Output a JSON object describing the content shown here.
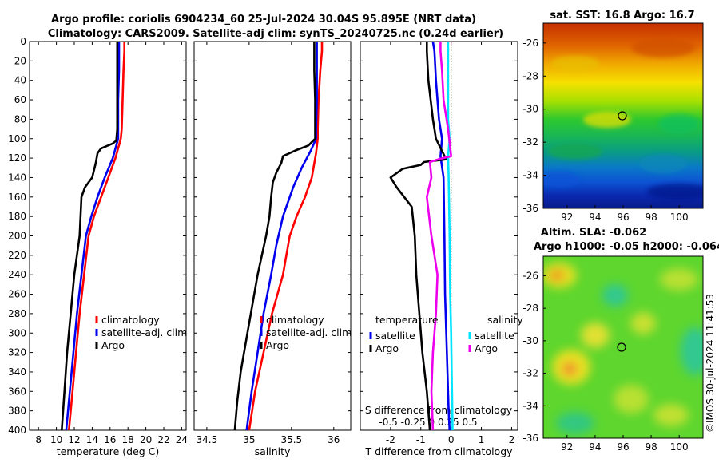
{
  "header": {
    "title_line1": "Argo profile: coriolis 6904234_60 25-Jul-2024 30.04S 95.895E (NRT data)",
    "title_line2": "Climatology: CARS2009. Satellite-adj clim: synTS_20240725.nc (0.24d earlier)"
  },
  "footer_stamp": "©IMOS 30-Jul-2024 11:41:53",
  "colors": {
    "red": "#ff0000",
    "blue": "#0000ee",
    "black": "#000000",
    "magenta": "#ee00ee",
    "cyan": "#00e5ff"
  },
  "chart_data": [
    {
      "id": "temperature",
      "type": "line",
      "xlabel": "temperature (deg C)",
      "ylabel": "",
      "xlim": [
        7,
        24.5
      ],
      "ylim": [
        400,
        0
      ],
      "xticks": [
        8,
        10,
        12,
        14,
        16,
        18,
        20,
        22,
        24
      ],
      "yticks": [
        0,
        20,
        40,
        60,
        80,
        100,
        120,
        140,
        160,
        180,
        200,
        220,
        240,
        260,
        280,
        300,
        320,
        340,
        360,
        380,
        400
      ],
      "legend": {
        "position": "lower-right",
        "entries": [
          "climatology",
          "satellite-adj. clim",
          "Argo"
        ]
      },
      "series": [
        {
          "name": "climatology",
          "color": "red",
          "points": [
            [
              17.6,
              0
            ],
            [
              17.6,
              10
            ],
            [
              17.5,
              30
            ],
            [
              17.4,
              60
            ],
            [
              17.3,
              90
            ],
            [
              17.2,
              100
            ],
            [
              16.6,
              120
            ],
            [
              15.8,
              140
            ],
            [
              15.0,
              160
            ],
            [
              14.2,
              180
            ],
            [
              13.6,
              200
            ],
            [
              13.1,
              240
            ],
            [
              12.6,
              280
            ],
            [
              12.2,
              320
            ],
            [
              11.8,
              360
            ],
            [
              11.4,
              400
            ]
          ]
        },
        {
          "name": "satellite-adj. clim",
          "color": "blue",
          "points": [
            [
              17.0,
              0
            ],
            [
              17.0,
              10
            ],
            [
              17.0,
              30
            ],
            [
              16.9,
              60
            ],
            [
              16.9,
              90
            ],
            [
              16.9,
              100
            ],
            [
              16.3,
              120
            ],
            [
              15.4,
              140
            ],
            [
              14.6,
              160
            ],
            [
              13.9,
              180
            ],
            [
              13.3,
              200
            ],
            [
              12.8,
              240
            ],
            [
              12.3,
              280
            ],
            [
              11.9,
              320
            ],
            [
              11.5,
              360
            ],
            [
              11.1,
              400
            ]
          ]
        },
        {
          "name": "Argo",
          "color": "black",
          "points": [
            [
              16.8,
              0
            ],
            [
              16.8,
              10
            ],
            [
              16.8,
              30
            ],
            [
              16.8,
              60
            ],
            [
              16.8,
              90
            ],
            [
              16.7,
              102
            ],
            [
              16.3,
              105
            ],
            [
              15.0,
              110
            ],
            [
              14.6,
              115
            ],
            [
              14.4,
              125
            ],
            [
              14.0,
              140
            ],
            [
              13.2,
              150
            ],
            [
              12.8,
              160
            ],
            [
              12.6,
              200
            ],
            [
              12.0,
              240
            ],
            [
              11.6,
              280
            ],
            [
              11.2,
              320
            ],
            [
              10.9,
              360
            ],
            [
              10.6,
              400
            ]
          ]
        }
      ]
    },
    {
      "id": "salinity",
      "type": "line",
      "xlabel": "salinity",
      "ylabel": "",
      "xlim": [
        34.35,
        36.2
      ],
      "ylim": [
        400,
        0
      ],
      "xticks": [
        34.5,
        35,
        35.5,
        36
      ],
      "xtick_labels": [
        "34.5",
        "35",
        "35.5",
        "36"
      ],
      "yticks": [
        0,
        20,
        40,
        60,
        80,
        100,
        120,
        140,
        160,
        180,
        200,
        220,
        240,
        260,
        280,
        300,
        320,
        340,
        360,
        380,
        400
      ],
      "legend": {
        "position": "lower-right",
        "entries": [
          "climatology",
          "satellite-adj. clim",
          "Argo"
        ]
      },
      "series": [
        {
          "name": "climatology",
          "color": "red",
          "points": [
            [
              35.86,
              0
            ],
            [
              35.86,
              10
            ],
            [
              35.84,
              30
            ],
            [
              35.82,
              60
            ],
            [
              35.81,
              90
            ],
            [
              35.81,
              100
            ],
            [
              35.79,
              115
            ],
            [
              35.74,
              140
            ],
            [
              35.66,
              160
            ],
            [
              35.56,
              180
            ],
            [
              35.48,
              200
            ],
            [
              35.4,
              240
            ],
            [
              35.27,
              280
            ],
            [
              35.17,
              320
            ],
            [
              35.07,
              360
            ],
            [
              35.0,
              400
            ]
          ]
        },
        {
          "name": "satellite-adj. clim",
          "color": "blue",
          "points": [
            [
              35.8,
              0
            ],
            [
              35.8,
              10
            ],
            [
              35.8,
              30
            ],
            [
              35.8,
              60
            ],
            [
              35.79,
              90
            ],
            [
              35.79,
              100
            ],
            [
              35.73,
              112
            ],
            [
              35.62,
              130
            ],
            [
              35.52,
              150
            ],
            [
              35.4,
              180
            ],
            [
              35.32,
              210
            ],
            [
              35.26,
              240
            ],
            [
              35.17,
              280
            ],
            [
              35.1,
              320
            ],
            [
              35.03,
              360
            ],
            [
              34.97,
              400
            ]
          ]
        },
        {
          "name": "Argo",
          "color": "black",
          "points": [
            [
              35.77,
              0
            ],
            [
              35.77,
              10
            ],
            [
              35.77,
              30
            ],
            [
              35.78,
              60
            ],
            [
              35.78,
              90
            ],
            [
              35.78,
              100
            ],
            [
              35.7,
              107
            ],
            [
              35.55,
              112
            ],
            [
              35.4,
              118
            ],
            [
              35.38,
              125
            ],
            [
              35.32,
              135
            ],
            [
              35.28,
              145
            ],
            [
              35.26,
              160
            ],
            [
              35.24,
              180
            ],
            [
              35.2,
              200
            ],
            [
              35.15,
              220
            ],
            [
              35.1,
              240
            ],
            [
              35.04,
              270
            ],
            [
              34.98,
              300
            ],
            [
              34.9,
              340
            ],
            [
              34.86,
              370
            ],
            [
              34.83,
              400
            ]
          ]
        }
      ]
    },
    {
      "id": "difference",
      "type": "line",
      "xlabel": "T difference from climatology",
      "xlabel_top": "S difference from climatology",
      "ylabel": "",
      "xlim": [
        -3,
        2.2
      ],
      "ylim": [
        400,
        0
      ],
      "xticks": [
        -2,
        -1,
        0,
        1,
        2
      ],
      "xtick_labels": [
        "-2",
        "-1",
        "0",
        "1",
        "2"
      ],
      "sticks_label": "-0.5 -0.25  0   0.25  0.5",
      "yticks": [
        0,
        20,
        40,
        60,
        80,
        100,
        120,
        140,
        160,
        180,
        200,
        220,
        240,
        260,
        280,
        300,
        320,
        340,
        360,
        380,
        400
      ],
      "legend_t": {
        "title": "temperature",
        "entries": [
          "satellite",
          "Argo"
        ]
      },
      "legend_s": {
        "title": "salinity",
        "entries": [
          "satellite",
          "Argo"
        ]
      },
      "series": [
        {
          "name": "temperature satellite",
          "color": "blue",
          "points": [
            [
              -0.6,
              0
            ],
            [
              -0.55,
              10
            ],
            [
              -0.5,
              40
            ],
            [
              -0.4,
              80
            ],
            [
              -0.3,
              100
            ],
            [
              -0.35,
              118
            ],
            [
              -0.25,
              140
            ],
            [
              -0.22,
              200
            ],
            [
              -0.2,
              260
            ],
            [
              -0.16,
              300
            ],
            [
              -0.12,
              340
            ],
            [
              -0.08,
              380
            ],
            [
              -0.05,
              400
            ]
          ]
        },
        {
          "name": "temperature Argo",
          "color": "black",
          "points": [
            [
              -0.8,
              0
            ],
            [
              -0.8,
              10
            ],
            [
              -0.75,
              40
            ],
            [
              -0.6,
              80
            ],
            [
              -0.5,
              100
            ],
            [
              -0.2,
              119
            ],
            [
              -0.1,
              121
            ],
            [
              -0.9,
              124
            ],
            [
              -1.0,
              127
            ],
            [
              -1.6,
              131
            ],
            [
              -2.0,
              140
            ],
            [
              -1.8,
              150
            ],
            [
              -1.3,
              170
            ],
            [
              -1.2,
              200
            ],
            [
              -1.15,
              240
            ],
            [
              -1.05,
              280
            ],
            [
              -0.95,
              320
            ],
            [
              -0.8,
              360
            ],
            [
              -0.7,
              400
            ]
          ]
        },
        {
          "name": "salinity satellite",
          "color": "cyan",
          "points": [
            [
              -0.1,
              0
            ],
            [
              -0.1,
              40
            ],
            [
              -0.1,
              80
            ],
            [
              -0.05,
              100
            ],
            [
              -0.1,
              118
            ],
            [
              -0.08,
              140
            ],
            [
              -0.05,
              200
            ],
            [
              -0.03,
              260
            ],
            [
              0,
              300
            ],
            [
              0.02,
              340
            ],
            [
              0.04,
              380
            ],
            [
              0.05,
              400
            ]
          ]
        },
        {
          "name": "salinity Argo",
          "color": "magenta",
          "points": [
            [
              -0.35,
              0
            ],
            [
              -0.35,
              10
            ],
            [
              -0.3,
              30
            ],
            [
              -0.25,
              60
            ],
            [
              -0.1,
              90
            ],
            [
              0,
              118
            ],
            [
              -0.4,
              121
            ],
            [
              -0.7,
              124
            ],
            [
              -0.65,
              140
            ],
            [
              -0.8,
              160
            ],
            [
              -0.65,
              200
            ],
            [
              -0.45,
              240
            ],
            [
              -0.5,
              280
            ],
            [
              -0.6,
              320
            ],
            [
              -0.65,
              360
            ],
            [
              -0.6,
              400
            ]
          ]
        }
      ]
    },
    {
      "id": "sst_map",
      "type": "heatmap",
      "title": "sat. SST: 16.8 Argo: 16.7",
      "xticks": [
        92,
        94,
        96,
        98,
        100
      ],
      "yticks": [
        -26,
        -28,
        -30,
        -32,
        -34,
        -36
      ],
      "xlim": [
        90.3,
        101.7
      ],
      "ylim": [
        -36,
        -24.8
      ],
      "marker": {
        "lon": 95.9,
        "lat": -30.04
      }
    },
    {
      "id": "sla_map",
      "type": "heatmap",
      "title_line1": "Altim. SLA: -0.062",
      "title_line2": "Argo h1000: -0.05 h2000: -0.064",
      "xticks": [
        92,
        94,
        96,
        98,
        100
      ],
      "yticks": [
        -26,
        -28,
        -30,
        -32,
        -34,
        -36
      ],
      "xlim": [
        90.3,
        101.7
      ],
      "ylim": [
        -36,
        -24.8
      ],
      "marker": {
        "lon": 95.9,
        "lat": -30.04
      }
    }
  ]
}
